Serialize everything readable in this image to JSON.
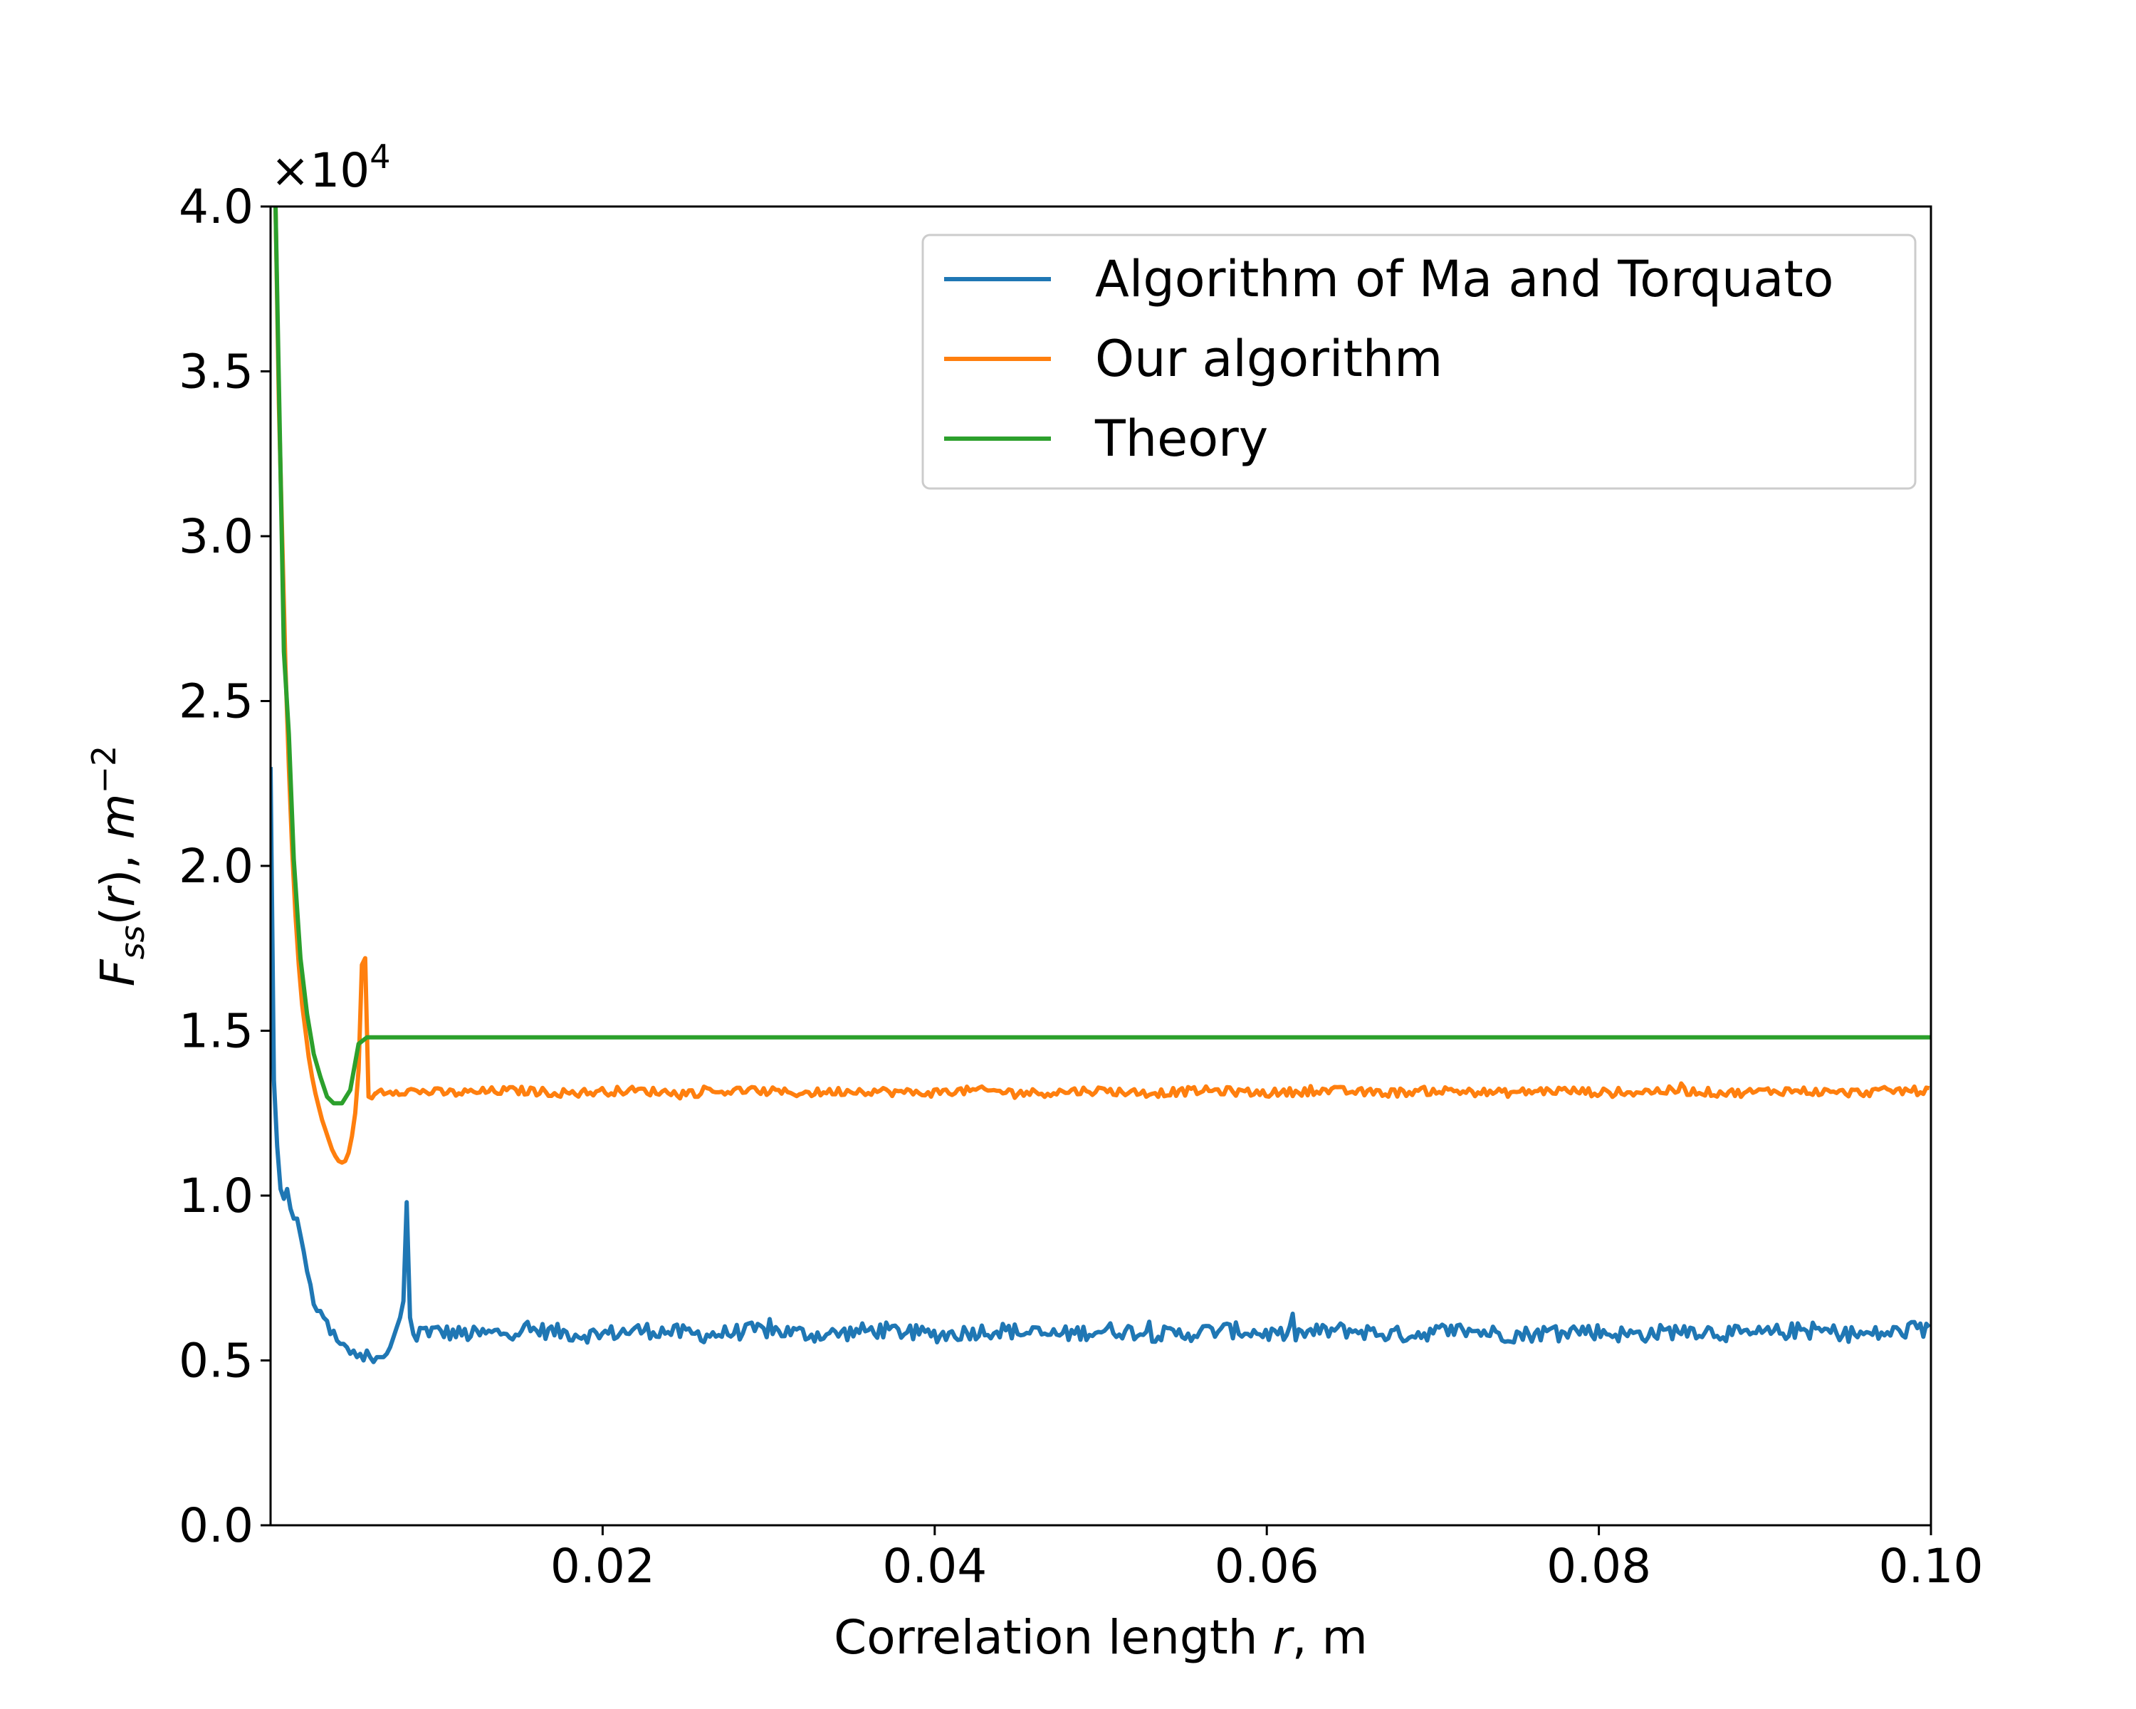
{
  "chart_data": {
    "type": "line",
    "xlabel_parts": [
      "Correlation length ",
      "r",
      ", m"
    ],
    "ylabel_parts": [
      "F",
      "ss",
      "(",
      "r",
      "), ",
      "m",
      "−2"
    ],
    "y_offset_parts": [
      "×10",
      "4"
    ],
    "xlim": [
      0,
      0.1
    ],
    "ylim": [
      0,
      40000
    ],
    "x_ticks": [
      0.02,
      0.04,
      0.06,
      0.08,
      0.1
    ],
    "x_tick_labels": [
      "0.02",
      "0.04",
      "0.06",
      "0.08",
      "0.10"
    ],
    "y_ticks": [
      0,
      5000,
      10000,
      15000,
      20000,
      25000,
      30000,
      35000,
      40000
    ],
    "y_tick_labels": [
      "0.0",
      "0.5",
      "1.0",
      "1.5",
      "2.0",
      "2.5",
      "3.0",
      "3.5",
      "4.0"
    ],
    "grid": false,
    "legend_position": "top-right",
    "series": [
      {
        "name": "Algorithm of Ma and Torquato",
        "color": "#1f77b4",
        "points": [
          [
            0.0,
            23000
          ],
          [
            0.0002,
            13500
          ],
          [
            0.0004,
            11500
          ],
          [
            0.0006,
            10200
          ],
          [
            0.0008,
            9900
          ],
          [
            0.001,
            10200
          ],
          [
            0.0012,
            9600
          ],
          [
            0.0014,
            9300
          ],
          [
            0.0016,
            9300
          ],
          [
            0.0018,
            8800
          ],
          [
            0.002,
            8300
          ],
          [
            0.0022,
            7700
          ],
          [
            0.0024,
            7300
          ],
          [
            0.0026,
            6700
          ],
          [
            0.0028,
            6500
          ],
          [
            0.003,
            6500
          ],
          [
            0.0032,
            6300
          ],
          [
            0.0034,
            6200
          ],
          [
            0.0036,
            5800
          ],
          [
            0.0038,
            5900
          ],
          [
            0.004,
            5600
          ],
          [
            0.0042,
            5500
          ],
          [
            0.0044,
            5500
          ],
          [
            0.0046,
            5400
          ],
          [
            0.0048,
            5200
          ],
          [
            0.005,
            5300
          ],
          [
            0.0052,
            5100
          ],
          [
            0.0054,
            5200
          ],
          [
            0.0056,
            5000
          ],
          [
            0.0058,
            5300
          ],
          [
            0.006,
            5100
          ],
          [
            0.0062,
            4950
          ],
          [
            0.0064,
            5100
          ],
          [
            0.0066,
            5100
          ],
          [
            0.0068,
            5100
          ],
          [
            0.007,
            5200
          ],
          [
            0.0072,
            5400
          ],
          [
            0.0074,
            5700
          ],
          [
            0.0076,
            6000
          ],
          [
            0.0078,
            6300
          ],
          [
            0.008,
            6800
          ],
          [
            0.0082,
            9800
          ],
          [
            0.0084,
            6300
          ],
          [
            0.0086,
            5800
          ],
          [
            0.0088,
            5600
          ]
        ],
        "baseline": 5850,
        "baseline_x": [
          0.009,
          0.1
        ],
        "noise_amplitude": 250
      },
      {
        "name": "Our algorithm",
        "color": "#ff7f0e",
        "points": [
          [
            0.0003,
            40000
          ],
          [
            0.0005,
            34000
          ],
          [
            0.0007,
            30000
          ],
          [
            0.0009,
            26000
          ],
          [
            0.0011,
            23000
          ],
          [
            0.0013,
            20500
          ],
          [
            0.0015,
            18500
          ],
          [
            0.0017,
            17000
          ],
          [
            0.0019,
            15800
          ],
          [
            0.0021,
            15000
          ],
          [
            0.0023,
            14200
          ],
          [
            0.0025,
            13600
          ],
          [
            0.0027,
            13100
          ],
          [
            0.0029,
            12700
          ],
          [
            0.0031,
            12300
          ],
          [
            0.0033,
            12000
          ],
          [
            0.0035,
            11700
          ],
          [
            0.0037,
            11400
          ],
          [
            0.0039,
            11200
          ],
          [
            0.0041,
            11050
          ],
          [
            0.0043,
            11000
          ],
          [
            0.0045,
            11050
          ],
          [
            0.0047,
            11300
          ],
          [
            0.0049,
            11800
          ],
          [
            0.0051,
            12500
          ],
          [
            0.0053,
            13800
          ],
          [
            0.0055,
            17000
          ],
          [
            0.0057,
            17200
          ],
          [
            0.0059,
            13000
          ],
          [
            0.0061,
            12950
          ],
          [
            0.0063,
            13100
          ]
        ],
        "baseline": 13150,
        "baseline_x": [
          0.0063,
          0.1
        ],
        "noise_amplitude": 130
      },
      {
        "name": "Theory",
        "color": "#2ca02c",
        "points": [
          [
            0.0003,
            40000
          ],
          [
            0.0006,
            32000
          ],
          [
            0.0008,
            26500
          ],
          [
            0.0011,
            24000
          ],
          [
            0.0014,
            20200
          ],
          [
            0.0018,
            17200
          ],
          [
            0.0022,
            15500
          ],
          [
            0.0026,
            14300
          ],
          [
            0.003,
            13600
          ],
          [
            0.0034,
            13000
          ],
          [
            0.0038,
            12800
          ],
          [
            0.0043,
            12800
          ],
          [
            0.0048,
            13200
          ],
          [
            0.0053,
            14600
          ],
          [
            0.0058,
            14800
          ],
          [
            0.1,
            14800
          ]
        ]
      }
    ]
  }
}
